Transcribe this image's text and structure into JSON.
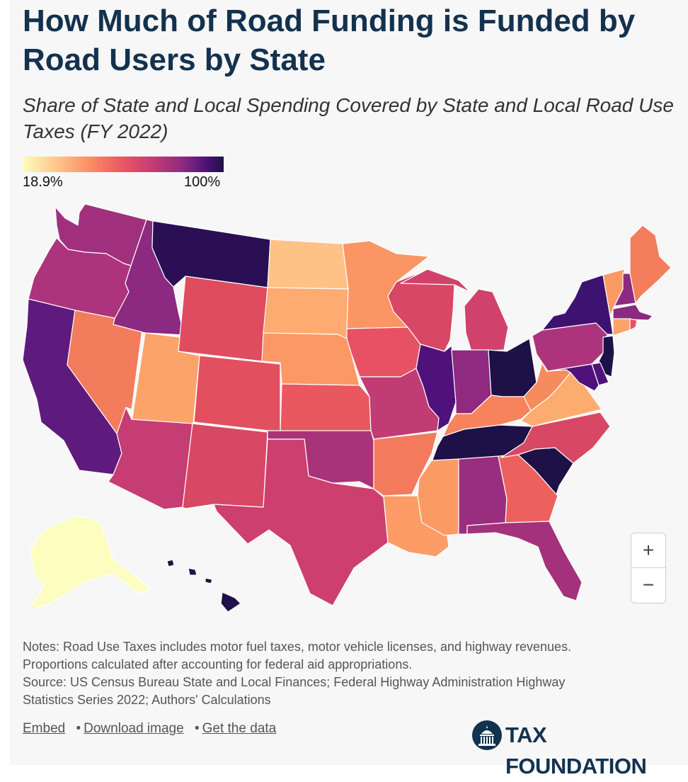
{
  "header": {
    "title": "How Much of Road Funding is Funded by Road Users by State",
    "subtitle": "Share of State and Local Spending Covered by State and Local Road Use Taxes (FY 2022)"
  },
  "legend": {
    "min_label": "18.9%",
    "max_label": "100%",
    "colors": [
      "#fcfdbf",
      "#fec287",
      "#fb8761",
      "#e65164",
      "#c03a76",
      "#8c2981",
      "#4f127b",
      "#1d1147"
    ]
  },
  "map": {
    "zoom_in_label": "+",
    "zoom_out_label": "−",
    "state_colors": {
      "WA": "#a0307e",
      "OR": "#ad347c",
      "CA": "#5f1a7d",
      "NV": "#f27c5c",
      "ID": "#8c2981",
      "MT": "#2a0f55",
      "WY": "#df4b5f",
      "UT": "#fca369",
      "AZ": "#c63d73",
      "CO": "#e2505f",
      "NM": "#d84763",
      "ND": "#fec287",
      "SD": "#fdab70",
      "NE": "#fb9866",
      "KS": "#e9585e",
      "OK": "#a93379",
      "TX": "#cd3f6f",
      "MN": "#fb9563",
      "IA": "#e65164",
      "MO": "#c13b75",
      "AR": "#f37a5c",
      "LA": "#fd9c66",
      "WI": "#d84763",
      "IL": "#4f127b",
      "MI": "#d0426c",
      "IN": "#8f2a80",
      "OH": "#1d1147",
      "KY": "#f6835c",
      "TN": "#1d1147",
      "MS": "#fc9a66",
      "AL": "#992e7e",
      "GA": "#ec605d",
      "FL": "#a3317b",
      "SC": "#1d1147",
      "NC": "#d84763",
      "VA": "#fdac6f",
      "WV": "#f68b5e",
      "PA": "#ad347c",
      "NY": "#3d1270",
      "VT": "#fc9a66",
      "NH": "#8c2981",
      "ME": "#f47d5c",
      "MA": "#8c2981",
      "CT": "#fca369",
      "RI": "#e65164",
      "NJ": "#1d1147",
      "DE": "#4f127b",
      "MD": "#4f127b",
      "AK": "#fcfdbf",
      "HI": "#1d1147"
    }
  },
  "notes": {
    "line1": "Notes: Road Use Taxes includes motor fuel taxes, motor vehicle licenses, and highway revenues.",
    "line2": "Proportions calculated after accounting for federal aid appropriations.",
    "line3": "Source: US Census Bureau State and Local Finances; Federal Highway Administration Highway",
    "line4": "Statistics Series 2022; Authors' Calculations"
  },
  "footer": {
    "embed_label": "Embed",
    "separator": "•",
    "download_label": "Download image",
    "data_label": "Get the data",
    "brand": "TAX FOUNDATION"
  }
}
